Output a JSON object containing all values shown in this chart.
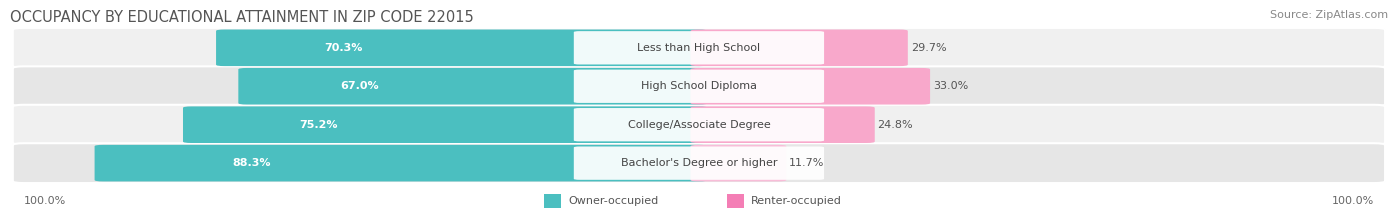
{
  "title": "OCCUPANCY BY EDUCATIONAL ATTAINMENT IN ZIP CODE 22015",
  "source": "Source: ZipAtlas.com",
  "categories": [
    "Less than High School",
    "High School Diploma",
    "College/Associate Degree",
    "Bachelor's Degree or higher"
  ],
  "owner_values": [
    70.3,
    67.0,
    75.2,
    88.3
  ],
  "renter_values": [
    29.7,
    33.0,
    24.8,
    11.7
  ],
  "owner_color": "#4BBFC0",
  "renter_color": "#F47EB5",
  "renter_color_light": [
    "#F8A8CB",
    "#F8A8CB",
    "#F8A8CB",
    "#F8BDD8"
  ],
  "row_bg_colors": [
    "#F0F0F0",
    "#E6E6E6"
  ],
  "owner_label": "Owner-occupied",
  "renter_label": "Renter-occupied",
  "axis_label_left": "100.0%",
  "axis_label_right": "100.0%",
  "title_fontsize": 10.5,
  "source_fontsize": 8,
  "bar_label_fontsize": 8,
  "category_fontsize": 8,
  "legend_fontsize": 8,
  "axis_tick_fontsize": 8
}
